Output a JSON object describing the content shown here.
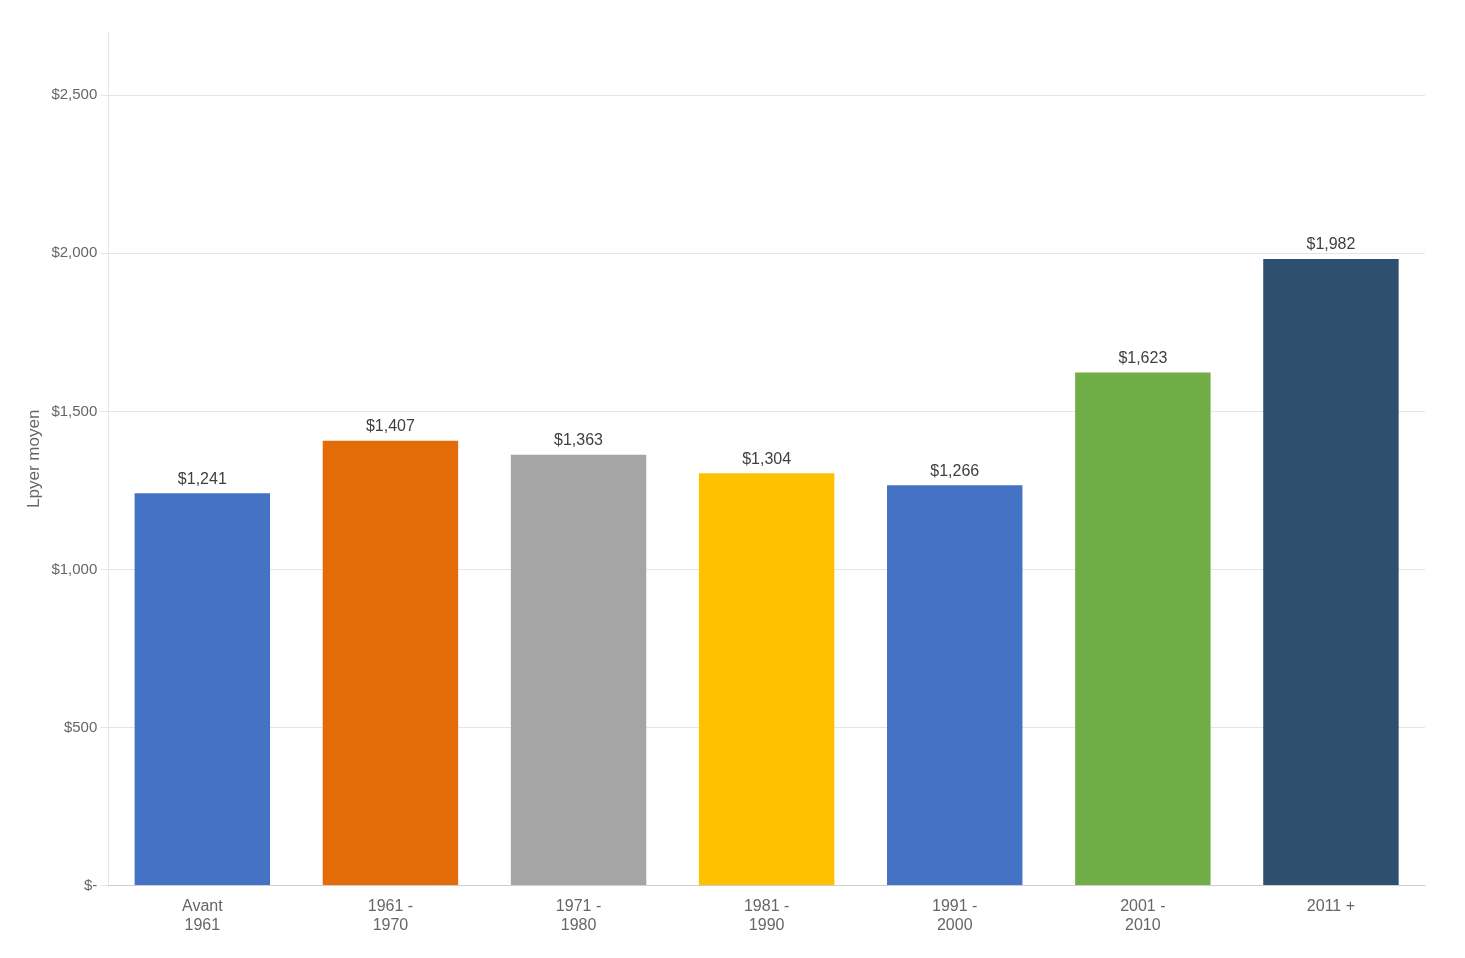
{
  "chart_data": {
    "type": "bar",
    "categories": [
      "Avant\n1961",
      "1961 -\n1970",
      "1971 -\n1980",
      "1981 -\n1990",
      "1991 -\n2000",
      "2001 -\n2010",
      "2011 +"
    ],
    "values": [
      1241,
      1407,
      1363,
      1304,
      1266,
      1623,
      1982
    ],
    "value_labels": [
      "$1,241",
      "$1,407",
      "$1,363",
      "$1,304",
      "$1,266",
      "$1,623",
      "$1,982"
    ],
    "data_labels": true,
    "colors": [
      "#4472C4",
      "#E36C09",
      "#A5A5A5",
      "#FFC000",
      "#4472C4",
      "#70AD47",
      "#2F4F6E"
    ],
    "ylabel": "Lpyer moyen",
    "ylim": [
      0,
      2700
    ],
    "yticks": [
      {
        "value": 0,
        "label": "$-"
      },
      {
        "value": 500,
        "label": "$500"
      },
      {
        "value": 1000,
        "label": "$1,000"
      },
      {
        "value": 1500,
        "label": "$1,500"
      },
      {
        "value": 2000,
        "label": "$2,000"
      },
      {
        "value": 2500,
        "label": "$2,500"
      }
    ],
    "grid": true
  }
}
